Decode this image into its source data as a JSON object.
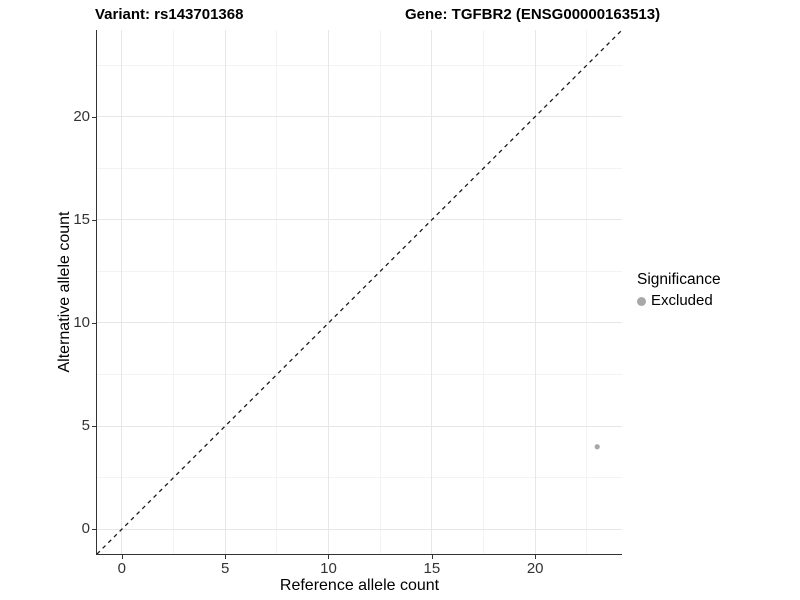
{
  "chart_data": {
    "type": "scatter",
    "title": {
      "left": "Variant: rs143701368",
      "right": "Gene: TGFBR2 (ENSG00000163513)"
    },
    "xlabel": "Reference allele count",
    "ylabel": "Alternative allele count",
    "xlim": [
      -1.2,
      24.2
    ],
    "ylim": [
      -1.2,
      24.2
    ],
    "xticks": [
      0,
      5,
      10,
      15,
      20
    ],
    "yticks": [
      0,
      5,
      10,
      15,
      20
    ],
    "minor_ticks": [
      2.5,
      7.5,
      12.5,
      17.5,
      22.5
    ],
    "grid": true,
    "identity_line": {
      "style": "dashed",
      "equation": "y = x",
      "color": "#1a1a1a"
    },
    "series": [
      {
        "name": "Excluded",
        "color": "#a8a8a8",
        "points": [
          {
            "x": 23,
            "y": 4
          }
        ]
      }
    ],
    "legend": {
      "title": "Significance",
      "position": "right",
      "items": [
        {
          "label": "Excluded",
          "color": "#a8a8a8"
        }
      ]
    },
    "colors": {
      "background": "#ffffff",
      "grid_major": "#e7e7e7",
      "grid_minor": "#f3f3f3",
      "axis_line": "#333333",
      "tick_text": "#333333",
      "title_text": "#000000"
    }
  }
}
